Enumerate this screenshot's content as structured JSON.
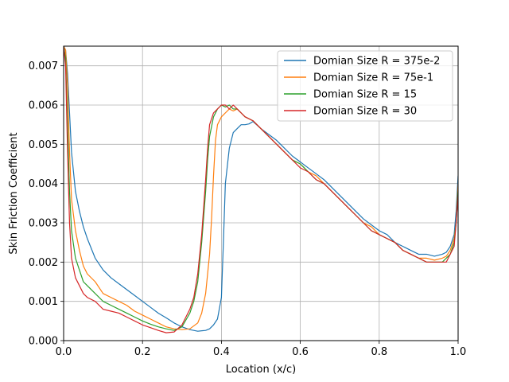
{
  "chart_data": {
    "type": "line",
    "title": "",
    "xlabel": "Location (x/c)",
    "ylabel": "Skin Friction Coefficient",
    "xlim": [
      0.0,
      1.0
    ],
    "ylim": [
      0.0,
      0.0075
    ],
    "xticks": [
      "0.0",
      "0.2",
      "0.4",
      "0.6",
      "0.8",
      "1.0"
    ],
    "yticks": [
      "0.000",
      "0.001",
      "0.002",
      "0.003",
      "0.004",
      "0.005",
      "0.006",
      "0.007"
    ],
    "grid": true,
    "legend_position": "top-right",
    "series": [
      {
        "name": "Domian Size R = 375e-2",
        "color": "#1f77b4",
        "x": [
          0.0,
          0.005,
          0.01,
          0.015,
          0.02,
          0.03,
          0.04,
          0.05,
          0.06,
          0.08,
          0.1,
          0.12,
          0.14,
          0.16,
          0.18,
          0.2,
          0.22,
          0.24,
          0.26,
          0.28,
          0.3,
          0.32,
          0.34,
          0.36,
          0.37,
          0.38,
          0.39,
          0.4,
          0.405,
          0.41,
          0.42,
          0.43,
          0.44,
          0.45,
          0.46,
          0.47,
          0.48,
          0.5,
          0.52,
          0.54,
          0.56,
          0.58,
          0.6,
          0.62,
          0.64,
          0.66,
          0.68,
          0.7,
          0.72,
          0.74,
          0.76,
          0.78,
          0.8,
          0.82,
          0.84,
          0.86,
          0.88,
          0.9,
          0.92,
          0.94,
          0.96,
          0.97,
          0.98,
          0.99,
          0.995,
          1.0
        ],
        "y": [
          0.0075,
          0.0074,
          0.0068,
          0.0058,
          0.0048,
          0.0038,
          0.0033,
          0.0029,
          0.0026,
          0.0021,
          0.0018,
          0.0016,
          0.00145,
          0.0013,
          0.00115,
          0.001,
          0.00085,
          0.0007,
          0.00058,
          0.00045,
          0.00035,
          0.00028,
          0.00024,
          0.00026,
          0.0003,
          0.0004,
          0.00055,
          0.0011,
          0.0025,
          0.004,
          0.0049,
          0.0053,
          0.0054,
          0.0055,
          0.0055,
          0.00552,
          0.00558,
          0.0054,
          0.00525,
          0.0051,
          0.0049,
          0.0047,
          0.00455,
          0.0044,
          0.00425,
          0.0041,
          0.0039,
          0.0037,
          0.0035,
          0.0033,
          0.0031,
          0.00295,
          0.0028,
          0.0027,
          0.0025,
          0.0024,
          0.0023,
          0.0022,
          0.0022,
          0.00215,
          0.0022,
          0.00225,
          0.0024,
          0.0027,
          0.0033,
          0.0042
        ]
      },
      {
        "name": "Domian Size R = 75e-1",
        "color": "#ff7f0e",
        "x": [
          0.0,
          0.005,
          0.01,
          0.015,
          0.02,
          0.03,
          0.04,
          0.05,
          0.06,
          0.08,
          0.1,
          0.12,
          0.14,
          0.16,
          0.18,
          0.2,
          0.22,
          0.24,
          0.26,
          0.28,
          0.3,
          0.32,
          0.34,
          0.35,
          0.36,
          0.37,
          0.375,
          0.38,
          0.385,
          0.39,
          0.4,
          0.41,
          0.42,
          0.43,
          0.44,
          0.45,
          0.46,
          0.48,
          0.5,
          0.52,
          0.54,
          0.56,
          0.58,
          0.6,
          0.62,
          0.64,
          0.66,
          0.68,
          0.7,
          0.72,
          0.74,
          0.76,
          0.78,
          0.8,
          0.82,
          0.84,
          0.86,
          0.88,
          0.9,
          0.92,
          0.94,
          0.96,
          0.97,
          0.98,
          0.99,
          0.995,
          1.0
        ],
        "y": [
          0.0075,
          0.0074,
          0.0065,
          0.0048,
          0.0036,
          0.0028,
          0.0023,
          0.0019,
          0.0017,
          0.0015,
          0.0012,
          0.0011,
          0.001,
          0.0009,
          0.00075,
          0.00065,
          0.00055,
          0.00045,
          0.00035,
          0.0003,
          0.00028,
          0.0003,
          0.00045,
          0.0007,
          0.0012,
          0.0022,
          0.0031,
          0.0042,
          0.0051,
          0.0055,
          0.0057,
          0.0058,
          0.0059,
          0.00585,
          0.0059,
          0.0058,
          0.0057,
          0.0056,
          0.0054,
          0.0052,
          0.005,
          0.0048,
          0.0046,
          0.0045,
          0.0043,
          0.0042,
          0.004,
          0.0038,
          0.0036,
          0.0034,
          0.0032,
          0.003,
          0.0029,
          0.0027,
          0.0026,
          0.0025,
          0.0023,
          0.0022,
          0.0021,
          0.0021,
          0.00205,
          0.0021,
          0.00215,
          0.0023,
          0.0026,
          0.003,
          0.004
        ]
      },
      {
        "name": "Domian Size R = 15",
        "color": "#2ca02c",
        "x": [
          0.0,
          0.005,
          0.01,
          0.015,
          0.02,
          0.03,
          0.04,
          0.05,
          0.06,
          0.08,
          0.1,
          0.12,
          0.14,
          0.16,
          0.18,
          0.2,
          0.22,
          0.24,
          0.26,
          0.28,
          0.3,
          0.32,
          0.33,
          0.34,
          0.35,
          0.36,
          0.365,
          0.37,
          0.38,
          0.39,
          0.4,
          0.41,
          0.42,
          0.43,
          0.44,
          0.45,
          0.46,
          0.48,
          0.5,
          0.52,
          0.54,
          0.56,
          0.58,
          0.6,
          0.62,
          0.64,
          0.66,
          0.68,
          0.7,
          0.72,
          0.74,
          0.76,
          0.78,
          0.8,
          0.82,
          0.84,
          0.86,
          0.88,
          0.9,
          0.92,
          0.94,
          0.96,
          0.97,
          0.98,
          0.99,
          0.995,
          1.0
        ],
        "y": [
          0.0075,
          0.0072,
          0.0055,
          0.0038,
          0.0028,
          0.0021,
          0.0018,
          0.0015,
          0.0014,
          0.0012,
          0.001,
          0.0009,
          0.0008,
          0.0007,
          0.0006,
          0.0005,
          0.00042,
          0.00035,
          0.0003,
          0.00026,
          0.00035,
          0.0007,
          0.001,
          0.0015,
          0.0025,
          0.0038,
          0.0046,
          0.0052,
          0.0057,
          0.0059,
          0.006,
          0.00595,
          0.006,
          0.0059,
          0.0059,
          0.0058,
          0.0057,
          0.0056,
          0.0054,
          0.0052,
          0.005,
          0.0048,
          0.0046,
          0.0045,
          0.0043,
          0.0041,
          0.004,
          0.0038,
          0.0036,
          0.0034,
          0.0032,
          0.003,
          0.0028,
          0.0027,
          0.0026,
          0.0025,
          0.0023,
          0.0022,
          0.0021,
          0.002,
          0.002,
          0.002,
          0.0021,
          0.0022,
          0.0025,
          0.003,
          0.0038
        ]
      },
      {
        "name": "Domian Size R = 30",
        "color": "#d62728",
        "x": [
          0.0,
          0.005,
          0.01,
          0.015,
          0.02,
          0.03,
          0.04,
          0.05,
          0.06,
          0.08,
          0.1,
          0.12,
          0.14,
          0.16,
          0.18,
          0.2,
          0.22,
          0.24,
          0.26,
          0.28,
          0.3,
          0.32,
          0.33,
          0.34,
          0.35,
          0.36,
          0.365,
          0.37,
          0.38,
          0.39,
          0.4,
          0.41,
          0.42,
          0.43,
          0.44,
          0.45,
          0.46,
          0.48,
          0.5,
          0.52,
          0.54,
          0.56,
          0.58,
          0.6,
          0.62,
          0.64,
          0.66,
          0.68,
          0.7,
          0.72,
          0.74,
          0.76,
          0.78,
          0.8,
          0.82,
          0.84,
          0.86,
          0.88,
          0.9,
          0.92,
          0.94,
          0.96,
          0.97,
          0.98,
          0.99,
          0.995,
          1.0
        ],
        "y": [
          0.0075,
          0.007,
          0.0048,
          0.003,
          0.0021,
          0.0016,
          0.0014,
          0.0012,
          0.0011,
          0.001,
          0.0008,
          0.00075,
          0.0007,
          0.0006,
          0.0005,
          0.0004,
          0.00033,
          0.00026,
          0.0002,
          0.00022,
          0.0004,
          0.0008,
          0.0011,
          0.0017,
          0.0027,
          0.0041,
          0.0049,
          0.0055,
          0.0058,
          0.0059,
          0.006,
          0.006,
          0.0059,
          0.006,
          0.0059,
          0.0058,
          0.0057,
          0.0056,
          0.0054,
          0.0052,
          0.005,
          0.0048,
          0.0046,
          0.0044,
          0.0043,
          0.0041,
          0.004,
          0.0038,
          0.0036,
          0.0034,
          0.0032,
          0.003,
          0.0028,
          0.0027,
          0.0026,
          0.0025,
          0.0023,
          0.0022,
          0.0021,
          0.002,
          0.002,
          0.002,
          0.002,
          0.0022,
          0.0024,
          0.003,
          0.0037
        ]
      }
    ]
  }
}
